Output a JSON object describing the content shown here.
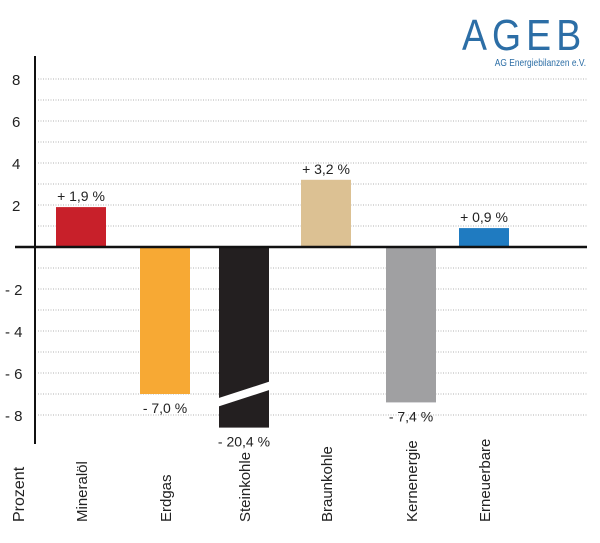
{
  "logo": {
    "main": "AGEB",
    "sub": "AG Energiebilanzen e.V.",
    "color": "#2c6ea6"
  },
  "chart_data": {
    "type": "bar",
    "title": "",
    "ylabel": "Prozent",
    "xlabel": "",
    "ylim": [
      -9,
      9
    ],
    "yticks": [
      8,
      6,
      4,
      2,
      -2,
      -4,
      -6,
      -8
    ],
    "ytick_labels": [
      "8",
      "6",
      "4",
      "2",
      "- 2",
      "- 4",
      "- 6",
      "- 8"
    ],
    "grid": "horizontal dotted",
    "categories": [
      "Mineralöl",
      "Erdgas",
      "Steinkohle",
      "Braunkohle",
      "Kernenergie",
      "Erneuerbare"
    ],
    "values": [
      1.9,
      -7.0,
      -20.4,
      3.2,
      -7.4,
      0.9
    ],
    "data_labels": [
      "+ 1,9 %",
      "- 7,0 %",
      "- 20,4 %",
      "+ 3,2 %",
      "- 7,4 %",
      "+ 0,9 %"
    ],
    "colors": [
      "#c8202a",
      "#f7a934",
      "#231f20",
      "#dcc193",
      "#a0a0a2",
      "#1f7bc1"
    ],
    "axis_break": "Steinkohle"
  }
}
